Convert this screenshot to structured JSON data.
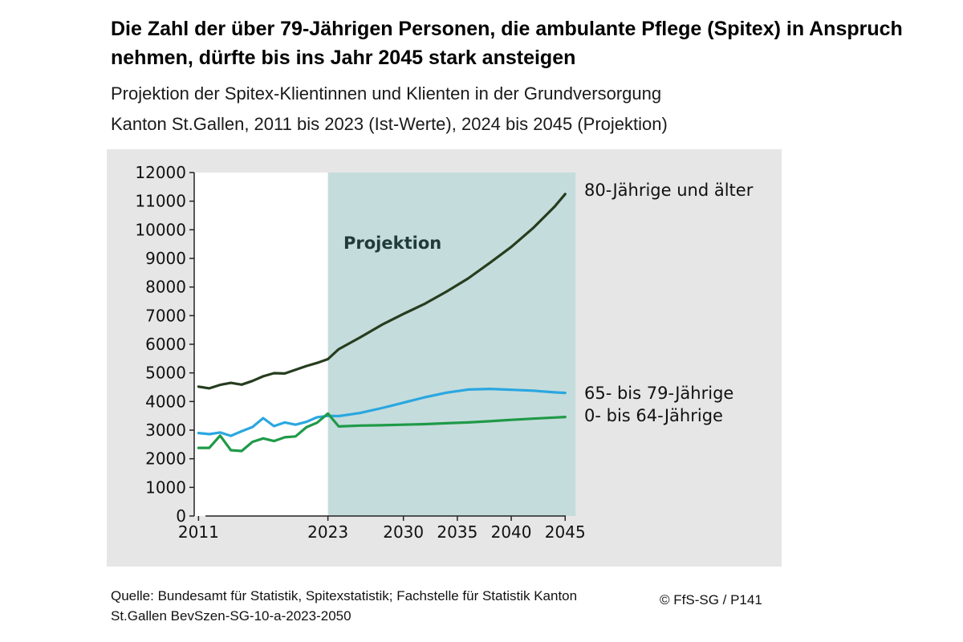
{
  "title": "Die Zahl der über 79-Jährigen Personen, die ambulante Pflege (Spitex) in Anspruch nehmen, dürfte bis ins Jahr 2045 stark ansteigen",
  "subtitle_line1": "Projektion der Spitex-Klientinnen und Klienten in der Grundversorgung",
  "subtitle_line2": "Kanton St.Gallen, 2011 bis 2023 (Ist-Werte), 2024 bis 2045 (Projektion)",
  "source": "Quelle: Bundesamt für Statistik, Spitexstatistik; Fachstelle für Statistik Kanton St.Gallen BevSzen-SG-10-a-2023-2050",
  "copyright": "© FfS-SG / P141",
  "colors": {
    "panel_background": "#e6e6e6",
    "plot_background": "#ffffff",
    "projection_band": "#c5dcdc",
    "series_80plus": "#263d1f",
    "series_65_79": "#2aa7e0",
    "series_0_64": "#1f9a48"
  },
  "chart_data": {
    "type": "line",
    "title": "",
    "xlabel": "",
    "ylabel": "",
    "xlim": [
      2011,
      2045
    ],
    "ylim": [
      0,
      12000
    ],
    "y_ticks": [
      0,
      1000,
      2000,
      3000,
      4000,
      5000,
      6000,
      7000,
      8000,
      9000,
      10000,
      11000,
      12000
    ],
    "x_tick_labels": [
      "2011",
      "2023",
      "2030",
      "2035",
      "2040",
      "2045"
    ],
    "grid": false,
    "projection_band": {
      "from": 2023,
      "to": 2045,
      "label": "Projektion"
    },
    "series": [
      {
        "name": "80-Jährige und älter",
        "color": "#263d1f",
        "points": [
          [
            2011,
            4520
          ],
          [
            2012,
            4460
          ],
          [
            2013,
            4580
          ],
          [
            2014,
            4650
          ],
          [
            2015,
            4590
          ],
          [
            2016,
            4720
          ],
          [
            2017,
            4880
          ],
          [
            2018,
            4990
          ],
          [
            2019,
            4980
          ],
          [
            2020,
            5110
          ],
          [
            2021,
            5240
          ],
          [
            2022,
            5350
          ],
          [
            2023,
            5480
          ],
          [
            2024,
            5830
          ],
          [
            2026,
            6240
          ],
          [
            2028,
            6680
          ],
          [
            2030,
            7060
          ],
          [
            2032,
            7420
          ],
          [
            2034,
            7840
          ],
          [
            2036,
            8300
          ],
          [
            2038,
            8840
          ],
          [
            2040,
            9400
          ],
          [
            2042,
            10050
          ],
          [
            2044,
            10800
          ],
          [
            2045,
            11250
          ]
        ]
      },
      {
        "name": "65- bis 79-Jährige",
        "color": "#2aa7e0",
        "points": [
          [
            2011,
            2900
          ],
          [
            2012,
            2860
          ],
          [
            2013,
            2920
          ],
          [
            2014,
            2800
          ],
          [
            2015,
            2960
          ],
          [
            2016,
            3110
          ],
          [
            2017,
            3420
          ],
          [
            2018,
            3140
          ],
          [
            2019,
            3270
          ],
          [
            2020,
            3190
          ],
          [
            2021,
            3290
          ],
          [
            2022,
            3450
          ],
          [
            2023,
            3500
          ],
          [
            2024,
            3490
          ],
          [
            2026,
            3600
          ],
          [
            2028,
            3770
          ],
          [
            2030,
            3960
          ],
          [
            2032,
            4150
          ],
          [
            2034,
            4310
          ],
          [
            2036,
            4420
          ],
          [
            2038,
            4440
          ],
          [
            2040,
            4410
          ],
          [
            2042,
            4380
          ],
          [
            2044,
            4320
          ],
          [
            2045,
            4300
          ]
        ]
      },
      {
        "name": "0- bis 64-Jährige",
        "color": "#1f9a48",
        "points": [
          [
            2011,
            2380
          ],
          [
            2012,
            2380
          ],
          [
            2013,
            2810
          ],
          [
            2014,
            2300
          ],
          [
            2015,
            2270
          ],
          [
            2016,
            2590
          ],
          [
            2017,
            2710
          ],
          [
            2018,
            2620
          ],
          [
            2019,
            2750
          ],
          [
            2020,
            2780
          ],
          [
            2021,
            3100
          ],
          [
            2022,
            3260
          ],
          [
            2023,
            3580
          ],
          [
            2024,
            3130
          ],
          [
            2026,
            3160
          ],
          [
            2028,
            3170
          ],
          [
            2030,
            3190
          ],
          [
            2032,
            3210
          ],
          [
            2034,
            3240
          ],
          [
            2036,
            3270
          ],
          [
            2038,
            3310
          ],
          [
            2040,
            3360
          ],
          [
            2042,
            3400
          ],
          [
            2044,
            3440
          ],
          [
            2045,
            3460
          ]
        ]
      }
    ]
  }
}
